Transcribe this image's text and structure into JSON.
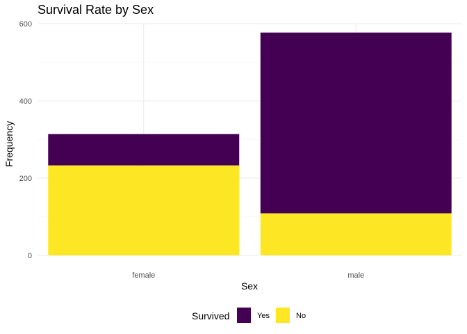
{
  "chart_data": {
    "type": "bar",
    "stacked": true,
    "title": "Survival Rate by Sex",
    "xlabel": "Sex",
    "ylabel": "Frequency",
    "categories": [
      "female",
      "male"
    ],
    "series": [
      {
        "name": "Yes",
        "values": [
          81,
          468
        ],
        "color": "#440154"
      },
      {
        "name": "No",
        "values": [
          233,
          109
        ],
        "color": "#FDE725"
      }
    ],
    "ylim": [
      0,
      600
    ],
    "yticks": [
      0,
      200,
      400,
      600
    ],
    "legend": {
      "title": "Survived",
      "position": "bottom"
    },
    "grid": true
  }
}
